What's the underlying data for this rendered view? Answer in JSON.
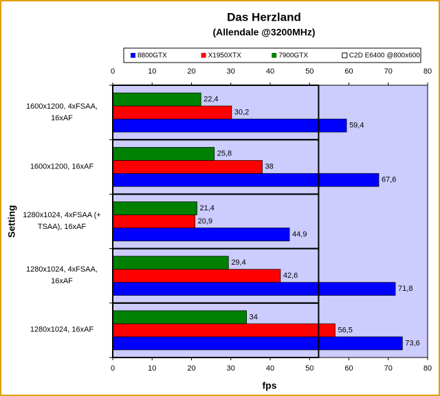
{
  "chart_data": {
    "type": "hbar",
    "title": "Das Herzland",
    "subtitle": "(Allendale @3200MHz)",
    "x_label": "fps",
    "y_label": "Setting",
    "categories": [
      "1600x1200, 4xFSAA, 16xAF",
      "1600x1200, 16xAF",
      "1280x1024, 4xFSAA (+ TSAA), 16xAF",
      "1280x1024, 4xFSAA, 16xAF",
      "1280x1024, 16xAF"
    ],
    "series": [
      {
        "name": "8800GTX",
        "color": "#0000ff",
        "values": [
          59.4,
          67.6,
          44.9,
          71.8,
          73.6
        ],
        "value_labels": [
          "59,4",
          "67,6",
          "44,9",
          "71,8",
          "73,6"
        ]
      },
      {
        "name": "X1950XTX",
        "color": "#ff0000",
        "values": [
          30.2,
          38,
          20.9,
          42.6,
          56.5
        ],
        "value_labels": [
          "30,2",
          "38",
          "20,9",
          "42,6",
          "56,5"
        ]
      },
      {
        "name": "7900GTX",
        "color": "#008000",
        "values": [
          22.4,
          25.8,
          21.4,
          29.4,
          34
        ],
        "value_labels": [
          "22,4",
          "25,8",
          "21,4",
          "29,4",
          "34"
        ]
      },
      {
        "name": "C2D E6400 @800x600",
        "color": "#ffffff",
        "outline": true,
        "values": [
          52.3,
          52.3,
          52.3,
          52.3,
          52.3
        ]
      }
    ],
    "xlim": [
      0,
      80
    ],
    "xticks": [
      0,
      10,
      20,
      30,
      40,
      50,
      60,
      70,
      80
    ],
    "grid": false,
    "legend": "top"
  }
}
